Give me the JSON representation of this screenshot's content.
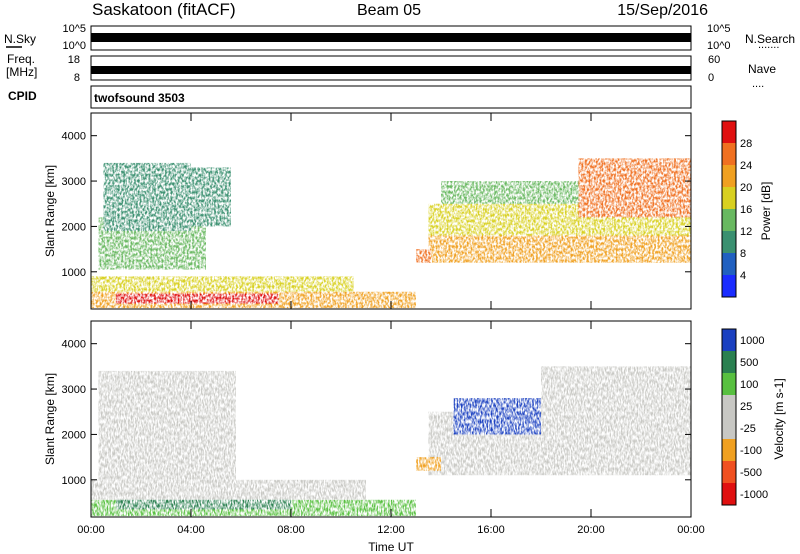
{
  "header": {
    "title": "Saskatoon (fitACF)",
    "beam": "Beam 05",
    "date": "15/Sep/2016"
  },
  "noise_panel": {
    "left_label": "N.Sky",
    "right_label": "N.Search",
    "right_marker": ".......",
    "left_ticks": [
      "10^5",
      "10^0"
    ],
    "right_ticks": [
      "10^5",
      "10^0"
    ]
  },
  "freq_panel": {
    "left_label_line1": "Freq.",
    "left_label_line2": "[MHz]",
    "right_label": "Nave",
    "right_marker": "....",
    "left_ticks": [
      "18",
      "8"
    ],
    "right_ticks": [
      "60",
      "0"
    ]
  },
  "cpid_panel": {
    "label": "CPID",
    "program": "twofsound 3503"
  },
  "colors": {
    "power_scale": [
      "#1a2cff",
      "#2060c0",
      "#3a9070",
      "#68b860",
      "#d8d020",
      "#f0a020",
      "#f07020",
      "#e01010"
    ],
    "velocity_scale": [
      "#e01010",
      "#f05020",
      "#f0a020",
      "#c8c8c4",
      "#c8c8c4",
      "#58c040",
      "#2a8050",
      "#1a40c0"
    ]
  },
  "chart_data": [
    {
      "type": "heatmap",
      "panel": "power",
      "ylabel": "Slant Range [km]",
      "yticks": [
        "1000",
        "2000",
        "3000",
        "4000"
      ],
      "ylim": [
        180,
        4500
      ],
      "xticks": [
        "00:00",
        "04:00",
        "08:00",
        "12:00",
        "16:00",
        "20:00",
        "00:00"
      ],
      "xlim_hours": [
        0,
        24
      ],
      "colorbar_label": "Power [dB]",
      "colorbar_ticks": [
        "4",
        "8",
        "12",
        "16",
        "20",
        "24",
        "28"
      ],
      "colorbar_range": [
        0,
        32
      ],
      "regions": [
        {
          "t": [
            0.0,
            13.0
          ],
          "r": [
            200,
            560
          ],
          "value_db": 22
        },
        {
          "t": [
            1.0,
            7.5
          ],
          "r": [
            300,
            520
          ],
          "value_db": 28
        },
        {
          "t": [
            0.0,
            10.5
          ],
          "r": [
            560,
            900
          ],
          "value_db": 18
        },
        {
          "t": [
            0.3,
            4.6
          ],
          "r": [
            1050,
            2200
          ],
          "value_db": 14
        },
        {
          "t": [
            0.5,
            4.0
          ],
          "r": [
            1900,
            3400
          ],
          "value_db": 8
        },
        {
          "t": [
            3.0,
            5.6
          ],
          "r": [
            2000,
            3300
          ],
          "value_db": 10
        },
        {
          "t": [
            13.5,
            24.0
          ],
          "r": [
            1200,
            1800
          ],
          "value_db": 20
        },
        {
          "t": [
            13.5,
            24.0
          ],
          "r": [
            1800,
            2500
          ],
          "value_db": 16
        },
        {
          "t": [
            14.0,
            20.0
          ],
          "r": [
            2500,
            3000
          ],
          "value_db": 12
        },
        {
          "t": [
            19.5,
            24.0
          ],
          "r": [
            2200,
            3500
          ],
          "value_db": 24
        },
        {
          "t": [
            13.0,
            13.6
          ],
          "r": [
            1200,
            1500
          ],
          "value_db": 26
        }
      ]
    },
    {
      "type": "heatmap",
      "panel": "velocity",
      "ylabel": "Slant Range [km]",
      "xlabel": "Time UT",
      "yticks": [
        "1000",
        "2000",
        "3000",
        "4000"
      ],
      "ylim": [
        180,
        4500
      ],
      "xticks": [
        "00:00",
        "04:00",
        "08:00",
        "12:00",
        "16:00",
        "20:00",
        "00:00"
      ],
      "xlim_hours": [
        0,
        24
      ],
      "colorbar_label": "Velocity [m s-1]",
      "colorbar_ticks": [
        "-1000",
        "-500",
        "-100",
        "-25",
        "25",
        "100",
        "500",
        "1000"
      ],
      "regions": [
        {
          "t": [
            0.0,
            13.0
          ],
          "r": [
            200,
            560
          ],
          "value_ms": 50
        },
        {
          "t": [
            1.0,
            8.0
          ],
          "r": [
            350,
            650
          ],
          "value_ms": 120
        },
        {
          "t": [
            0.0,
            11.0
          ],
          "r": [
            560,
            1000
          ],
          "value_ms": 0
        },
        {
          "t": [
            0.3,
            5.8
          ],
          "r": [
            1000,
            3400
          ],
          "value_ms": 0
        },
        {
          "t": [
            13.5,
            24.0
          ],
          "r": [
            1100,
            2500
          ],
          "value_ms": 0
        },
        {
          "t": [
            18.0,
            24.0
          ],
          "r": [
            2500,
            3500
          ],
          "value_ms": 0
        },
        {
          "t": [
            14.5,
            18.0
          ],
          "r": [
            2000,
            2800
          ],
          "value_ms": 600
        },
        {
          "t": [
            13.0,
            14.0
          ],
          "r": [
            1200,
            1500
          ],
          "value_ms": -300
        }
      ]
    }
  ]
}
